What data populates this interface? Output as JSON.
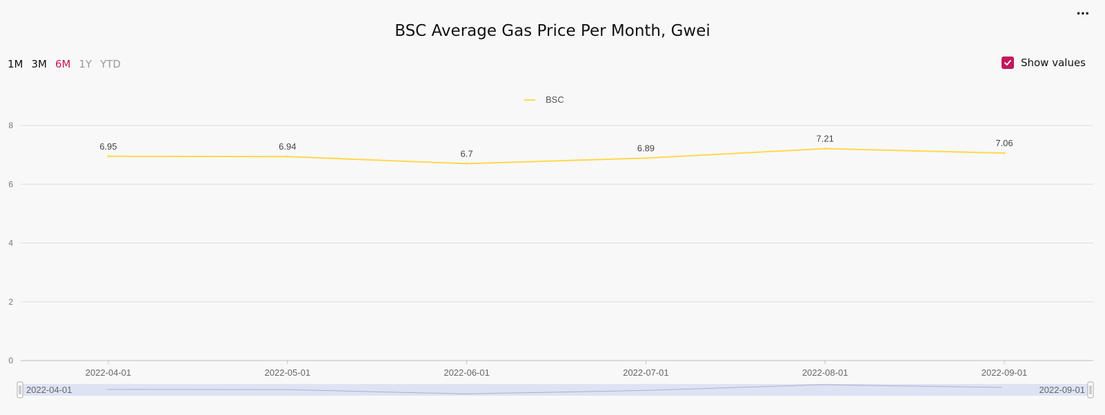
{
  "header": {
    "title": "BSC Average Gas Price Per Month, Gwei",
    "menu_icon": "more-horizontal-icon"
  },
  "range_tabs": [
    {
      "label": "1M",
      "state": "dark"
    },
    {
      "label": "3M",
      "state": "dark"
    },
    {
      "label": "6M",
      "state": "active"
    },
    {
      "label": "1Y",
      "state": "muted"
    },
    {
      "label": "YTD",
      "state": "muted"
    }
  ],
  "show_values": {
    "label": "Show values",
    "checked": true
  },
  "colors": {
    "accent": "#c2185b",
    "series_line": "#ffd84d",
    "grid": "#dcdcdc",
    "zoom_fill": "#dde3f3"
  },
  "chart_data": {
    "type": "line",
    "x": [
      "2022-04-01",
      "2022-05-01",
      "2022-06-01",
      "2022-07-01",
      "2022-08-01",
      "2022-09-01"
    ],
    "series": [
      {
        "name": "BSC",
        "values": [
          6.95,
          6.94,
          6.7,
          6.89,
          7.21,
          7.06
        ]
      }
    ],
    "data_labels": [
      "6.95",
      "6.94",
      "6.7",
      "6.89",
      "7.21",
      "7.06"
    ],
    "yticks": [
      "0",
      "2",
      "4",
      "6",
      "8"
    ],
    "ylim": [
      0,
      8
    ],
    "legend": "top-center",
    "grid": true,
    "zoom_slider": {
      "start": "2022-04-01",
      "end": "2022-09-01"
    }
  }
}
